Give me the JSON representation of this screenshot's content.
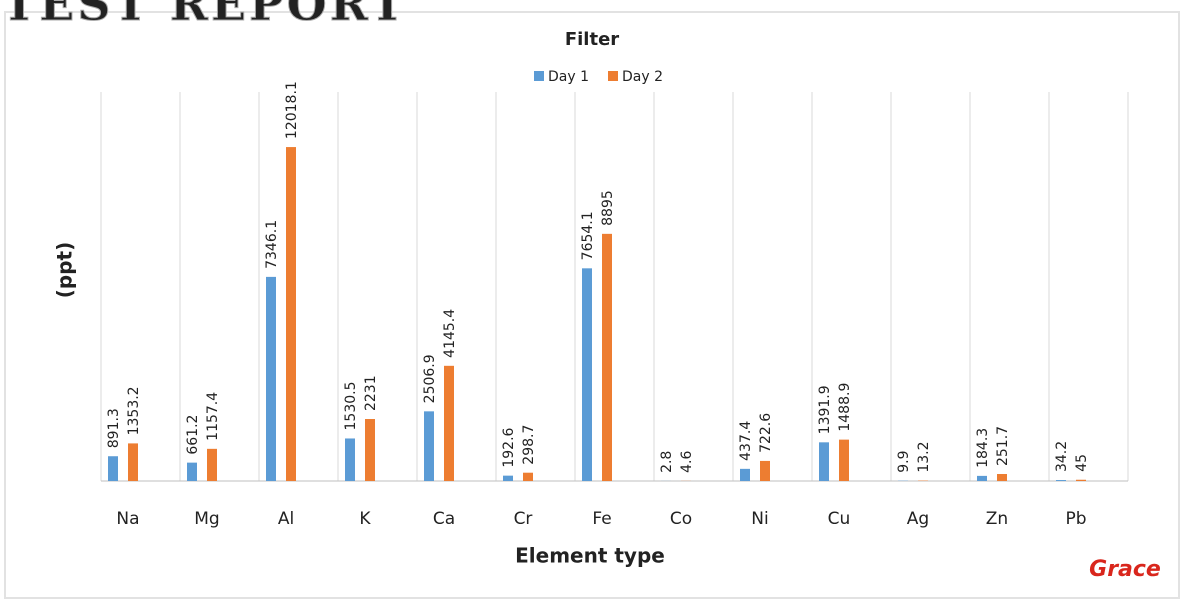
{
  "header": {
    "watermark": "TEST REPORT",
    "logo": "Grace"
  },
  "chart_data": {
    "type": "bar",
    "title": "Filter",
    "x_label": "Element type",
    "y_label": "(ppt)",
    "categories": [
      "Na",
      "Mg",
      "Al",
      "K",
      "Ca",
      "Cr",
      "Fe",
      "Co",
      "Ni",
      "Cu",
      "Ag",
      "Zn",
      "Pb"
    ],
    "series": [
      {
        "name": "Day 1",
        "color": "#5b9bd5",
        "values": [
          891.3,
          661.2,
          7346.1,
          1530.5,
          2506.9,
          192.6,
          7654.1,
          2.8,
          437.4,
          1391.9,
          9.9,
          184.3,
          34.2
        ]
      },
      {
        "name": "Day 2",
        "color": "#ed7d31",
        "values": [
          1353.2,
          1157.4,
          12018.1,
          2231,
          4145.4,
          298.7,
          8895,
          4.6,
          722.6,
          1488.9,
          13.2,
          251.7,
          45
        ]
      }
    ],
    "ylim": [
      0,
      14000
    ],
    "legend": "top"
  }
}
